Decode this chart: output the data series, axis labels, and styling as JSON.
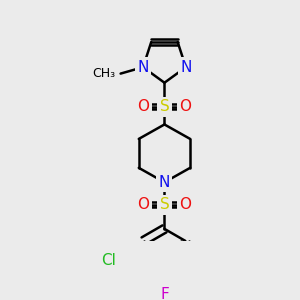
{
  "bg": "#ebebeb",
  "bond_color": "#000000",
  "lw": 1.8,
  "colors": {
    "N": "#1010ee",
    "O": "#ee1010",
    "S": "#cccc00",
    "Cl": "#22bb22",
    "F": "#cc00cc",
    "C": "#000000"
  },
  "figsize": [
    3.0,
    3.0
  ],
  "dpi": 100,
  "fs": 11
}
